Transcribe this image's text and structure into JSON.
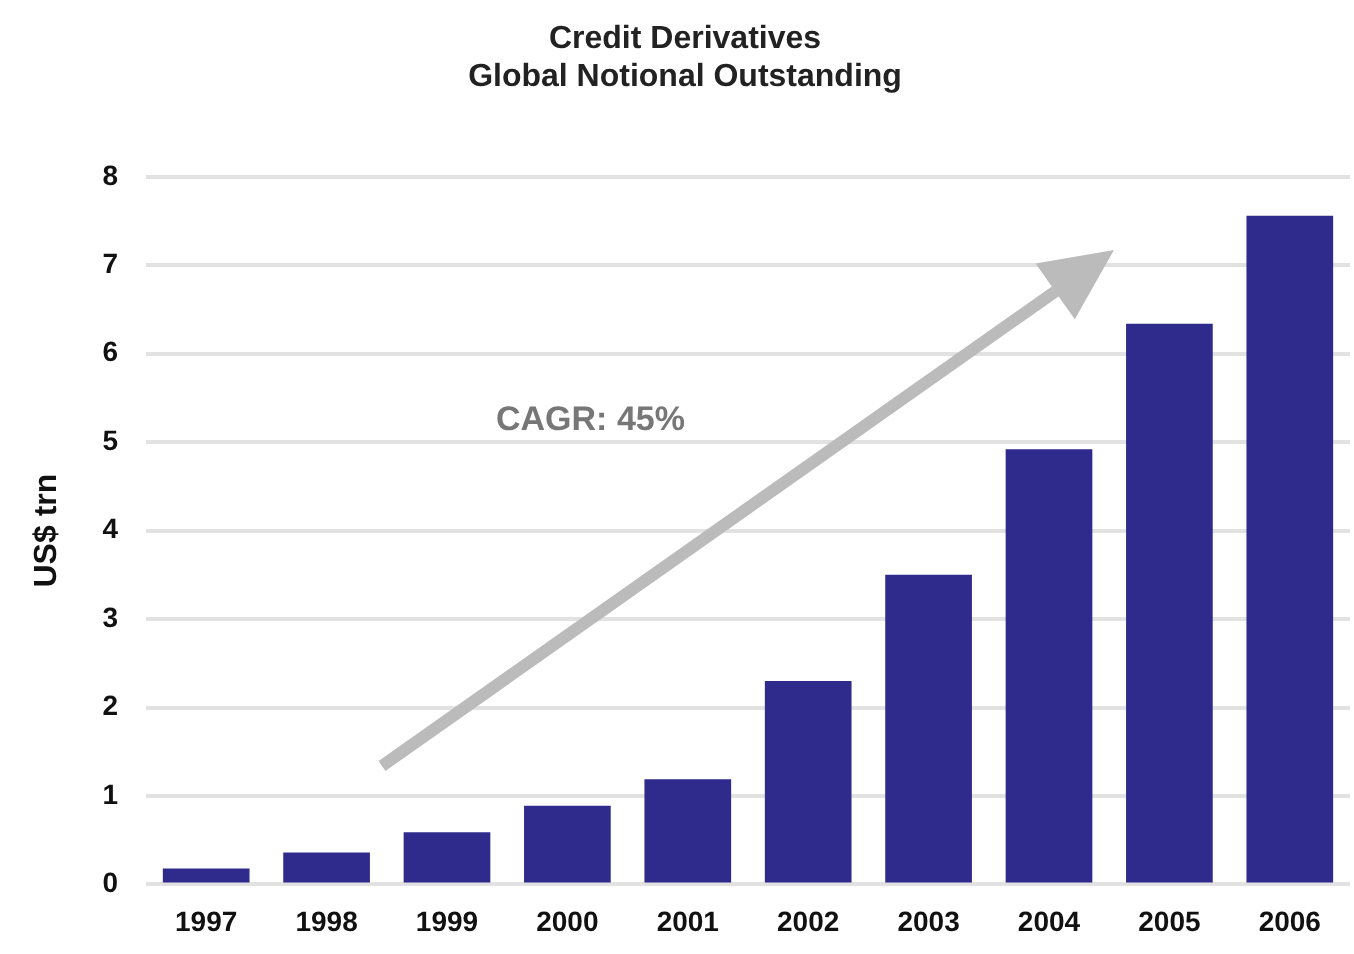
{
  "chart_data": {
    "type": "bar",
    "title": "Credit Derivatives",
    "subtitle": "Global Notional Outstanding",
    "ylabel": "US$ trn",
    "categories": [
      "1997",
      "1998",
      "1999",
      "2000",
      "2001",
      "2002",
      "2003",
      "2004",
      "2005",
      "2006"
    ],
    "values": [
      0.18,
      0.36,
      0.59,
      0.89,
      1.19,
      2.3,
      3.5,
      4.92,
      6.34,
      7.56
    ],
    "color": "#2f2b8c",
    "ylim": [
      0,
      8
    ],
    "yticks": [
      0,
      1,
      2,
      3,
      4,
      5,
      6,
      7,
      8
    ],
    "grid": "y",
    "annotations": [
      "CAGR: 45%"
    ]
  }
}
